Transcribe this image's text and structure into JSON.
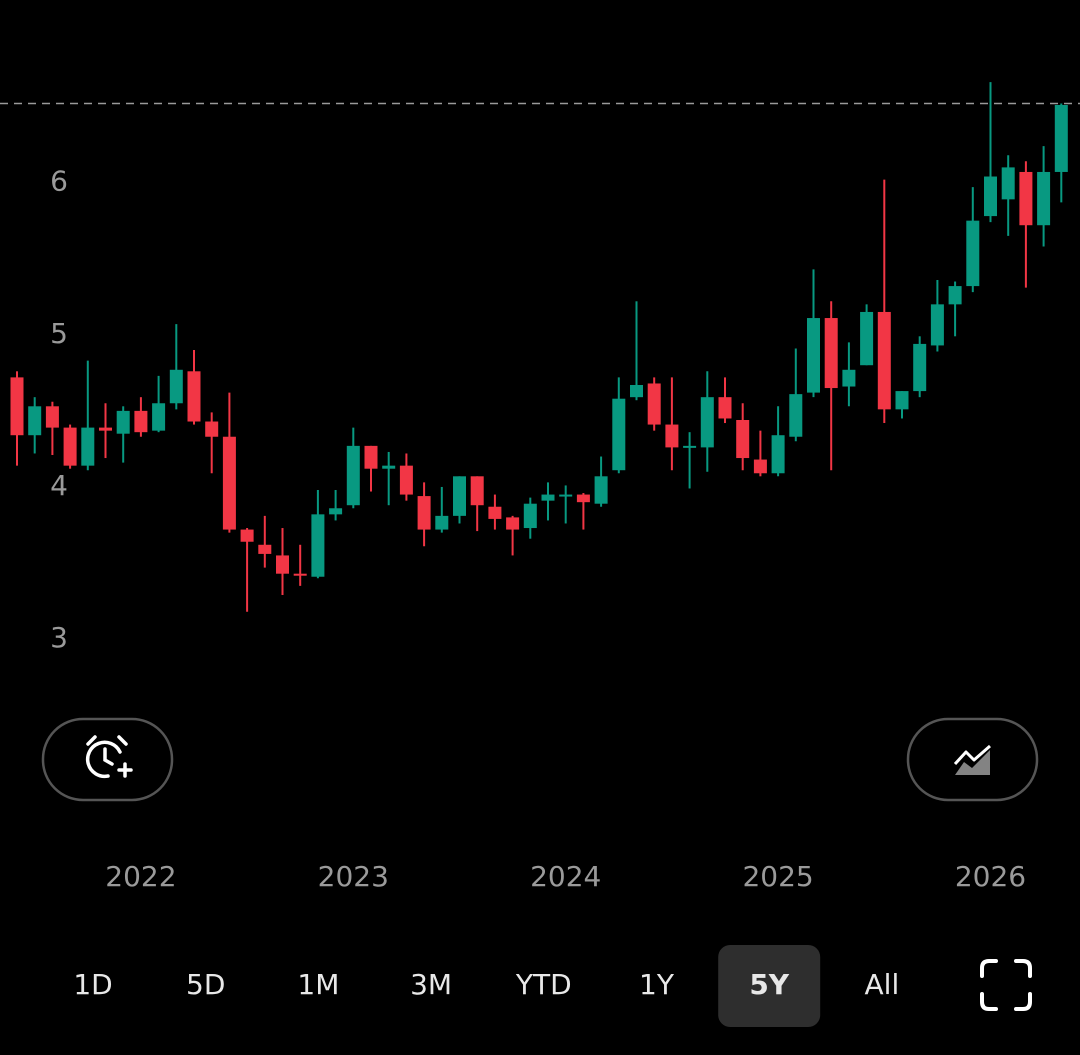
{
  "chart_data": {
    "type": "candlestick",
    "categories": [
      null,
      null,
      null,
      null,
      null,
      null,
      null,
      "2022",
      null,
      null,
      null,
      null,
      null,
      null,
      null,
      null,
      null,
      null,
      null,
      "2023",
      null,
      null,
      null,
      null,
      null,
      null,
      null,
      null,
      null,
      null,
      null,
      "2024",
      null,
      null,
      null,
      null,
      null,
      null,
      null,
      null,
      null,
      null,
      null,
      "2025",
      null,
      null,
      null,
      null,
      null,
      null,
      null,
      null,
      null,
      null,
      null,
      "2026",
      null,
      null,
      null,
      null
    ],
    "open": [
      4.72,
      4.34,
      4.53,
      4.39,
      4.14,
      4.39,
      4.35,
      4.5,
      4.37,
      4.55,
      4.76,
      4.43,
      4.33,
      3.72,
      3.62,
      3.55,
      3.43,
      3.41,
      3.82,
      3.88,
      4.27,
      4.12,
      4.14,
      3.94,
      3.72,
      3.81,
      4.07,
      3.87,
      3.8,
      3.73,
      3.91,
      3.94,
      3.95,
      3.89,
      4.11,
      4.59,
      4.68,
      4.41,
      4.26,
      4.26,
      4.59,
      4.44,
      4.18,
      4.09,
      4.33,
      4.62,
      5.11,
      4.66,
      4.8,
      5.15,
      4.51,
      4.63,
      4.93,
      5.2,
      5.32,
      5.78,
      5.89,
      6.07,
      5.72,
      6.07
    ],
    "high": [
      4.76,
      4.59,
      4.56,
      4.41,
      4.83,
      4.55,
      4.53,
      4.59,
      4.73,
      5.07,
      4.9,
      4.49,
      4.62,
      3.73,
      3.81,
      3.73,
      3.62,
      3.98,
      3.98,
      4.39,
      4.27,
      4.23,
      4.22,
      4.03,
      4.0,
      4.07,
      4.07,
      3.95,
      3.81,
      3.93,
      4.03,
      4.01,
      3.96,
      4.2,
      4.72,
      5.22,
      4.72,
      4.72,
      4.36,
      4.76,
      4.72,
      4.55,
      4.37,
      4.53,
      4.91,
      5.43,
      5.22,
      4.95,
      5.2,
      6.02,
      4.63,
      4.99,
      5.36,
      5.35,
      5.97,
      6.66,
      6.18,
      6.14,
      6.24,
      6.52
    ],
    "low": [
      4.14,
      4.22,
      4.21,
      4.12,
      4.11,
      4.19,
      4.16,
      4.33,
      4.36,
      4.51,
      4.41,
      4.09,
      3.7,
      3.18,
      3.47,
      3.29,
      3.35,
      3.4,
      3.78,
      3.86,
      3.97,
      3.88,
      3.91,
      3.61,
      3.7,
      3.76,
      3.71,
      3.72,
      3.55,
      3.66,
      3.78,
      3.76,
      3.72,
      3.87,
      4.09,
      4.57,
      4.37,
      4.11,
      3.99,
      4.1,
      4.42,
      4.11,
      4.07,
      4.07,
      4.3,
      4.59,
      4.11,
      4.53,
      4.8,
      4.42,
      4.45,
      4.59,
      4.89,
      4.99,
      5.28,
      5.74,
      5.65,
      5.31,
      5.58,
      5.87
    ],
    "close": [
      4.34,
      4.53,
      4.39,
      4.14,
      4.39,
      4.37,
      4.5,
      4.36,
      4.55,
      4.77,
      4.43,
      4.33,
      3.72,
      3.64,
      3.56,
      3.43,
      3.42,
      3.82,
      3.86,
      4.27,
      4.12,
      4.14,
      3.95,
      3.72,
      3.81,
      4.07,
      3.88,
      3.79,
      3.72,
      3.89,
      3.95,
      3.95,
      3.9,
      4.07,
      4.58,
      4.67,
      4.41,
      4.26,
      4.27,
      4.59,
      4.45,
      4.19,
      4.09,
      4.34,
      4.61,
      5.11,
      4.65,
      4.77,
      5.15,
      4.51,
      4.63,
      4.94,
      5.2,
      5.32,
      5.75,
      6.04,
      6.1,
      5.72,
      6.07,
      6.51
    ],
    "up_color": "#089981",
    "down_color": "#f23645",
    "price_line": 6.52,
    "ylim": [
      2.6,
      7.2
    ],
    "yticks": [
      3,
      4,
      5,
      6
    ],
    "grid": false
  },
  "range_tabs": [
    {
      "label": "1D"
    },
    {
      "label": "5D"
    },
    {
      "label": "1M"
    },
    {
      "label": "3M"
    },
    {
      "label": "YTD"
    },
    {
      "label": "1Y"
    },
    {
      "label": "5Y",
      "selected": true
    },
    {
      "label": "All"
    }
  ]
}
